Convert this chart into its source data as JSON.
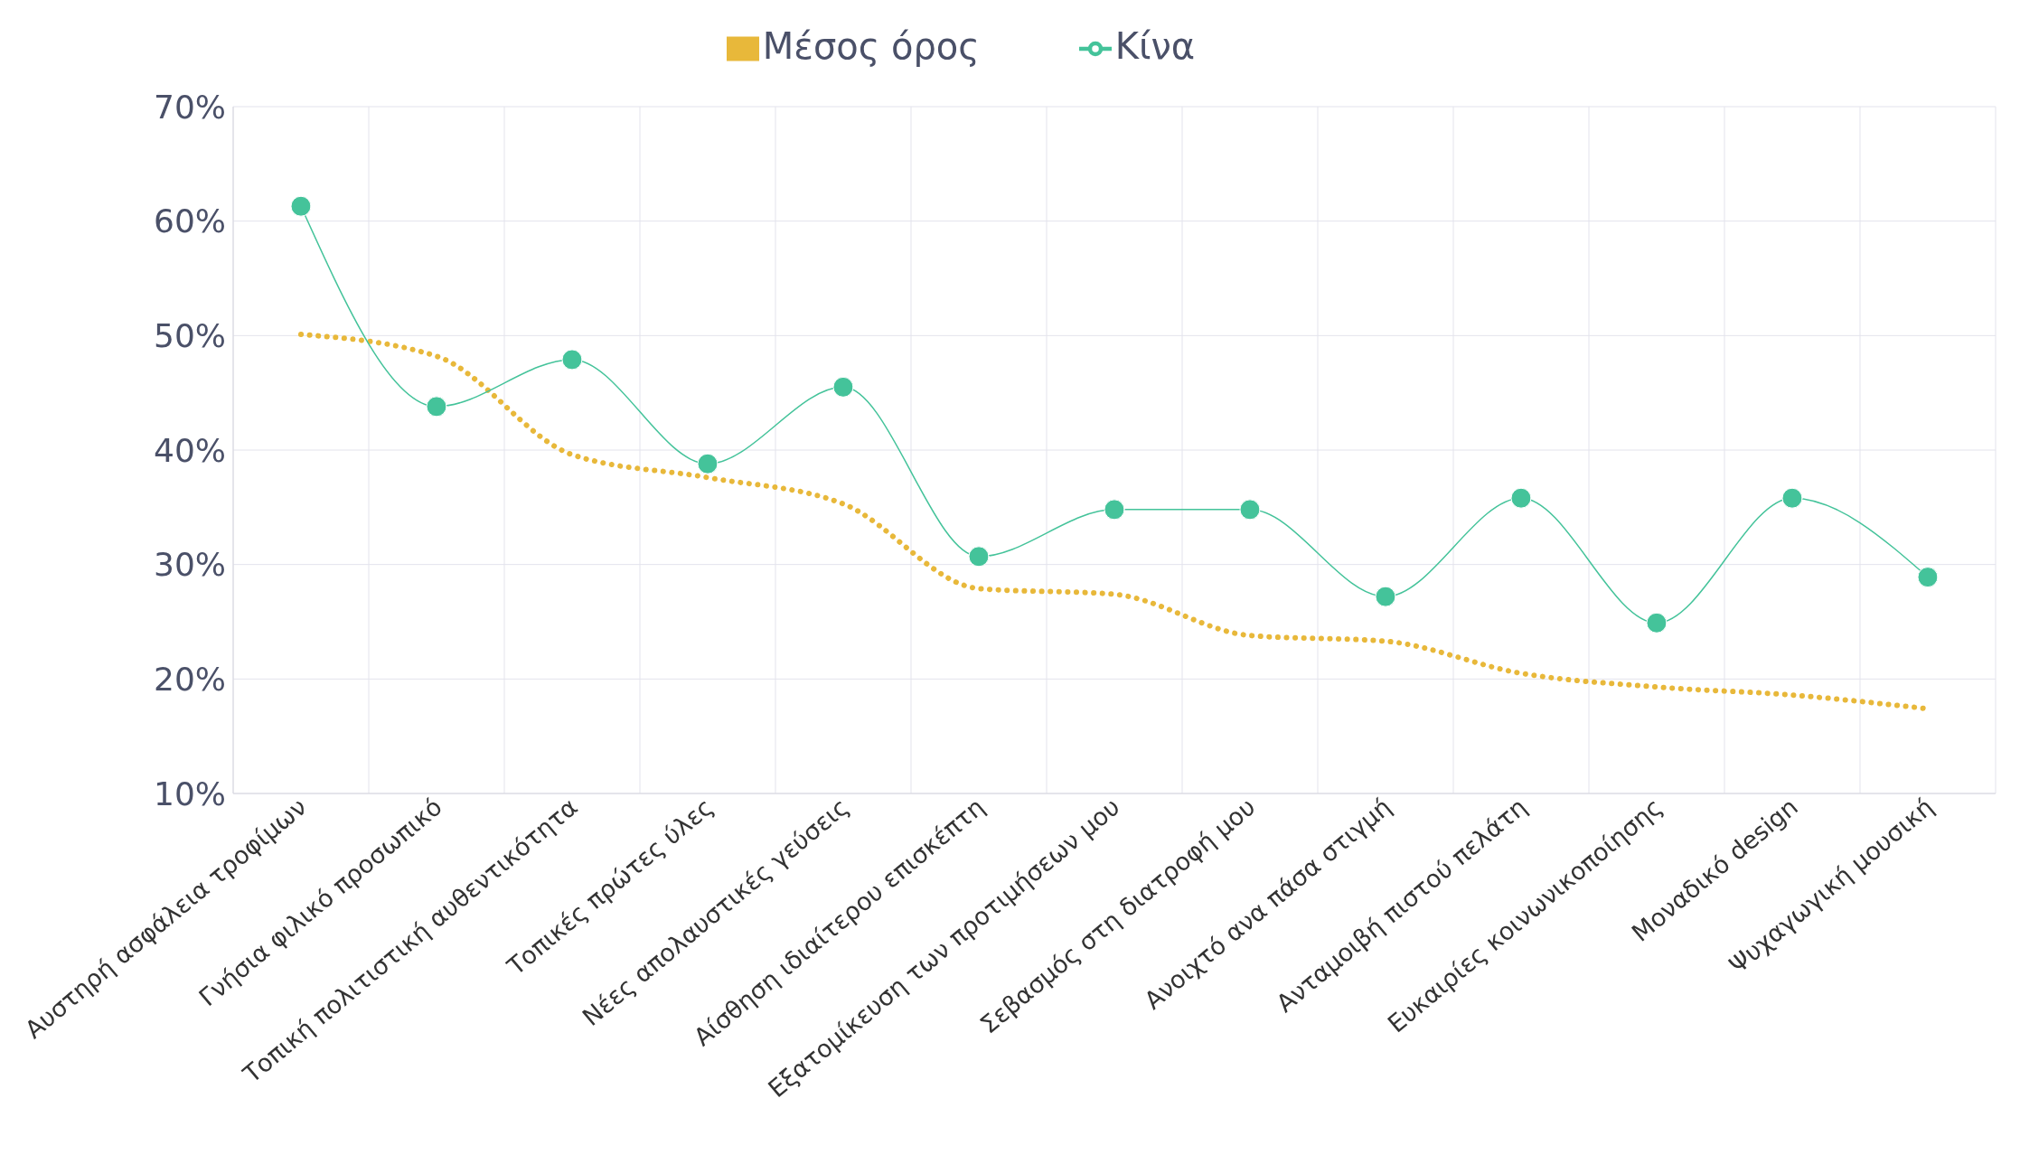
{
  "chart_data": {
    "type": "line",
    "categories": [
      "Αυστηρή ασφάλεια τροφίμων",
      "Γνήσια φιλικό προσωπικό",
      "Τοπική πολιτιστική αυθεντικότητα",
      "Τοπικές πρώτες ύλες",
      "Νέες απολαυστικές γεύσεις",
      "Αίσθηση ιδιαίτερου επισκέπτη",
      "Εξατομίκευση των προτιμήσεων μου",
      "Σεβασμός στη διατροφή μου",
      "Ανοιχτό ανα πάσα στιγμή",
      "Ανταμοιβή πιστού πελάτη",
      "Ευκαιρίες κοινωνικοποίησης",
      "Μοναδικό design",
      "Ψυχαγωγική μουσική"
    ],
    "series": [
      {
        "name": "Μέσος όρος",
        "color": "#e8b83a",
        "line_style": "dotted",
        "marker": "none",
        "values": [
          50.1,
          48.2,
          39.6,
          37.6,
          35.3,
          27.9,
          27.4,
          23.8,
          23.3,
          20.5,
          19.3,
          18.6,
          17.4
        ]
      },
      {
        "name": "Κίνα",
        "color": "#44c39a",
        "line_style": "solid",
        "marker": "circle",
        "values": [
          61.3,
          43.8,
          47.9,
          38.8,
          45.5,
          30.7,
          34.8,
          34.8,
          27.2,
          35.8,
          24.9,
          35.8,
          28.9
        ]
      }
    ],
    "ylim": [
      10,
      70
    ],
    "yticks": [
      {
        "value": 10,
        "label": "10%"
      },
      {
        "value": 20,
        "label": "20%"
      },
      {
        "value": 30,
        "label": "30%"
      },
      {
        "value": 40,
        "label": "40%"
      },
      {
        "value": 50,
        "label": "50%"
      },
      {
        "value": 60,
        "label": "60%"
      },
      {
        "value": 70,
        "label": "70%"
      }
    ],
    "grid": true,
    "legend": "top"
  }
}
